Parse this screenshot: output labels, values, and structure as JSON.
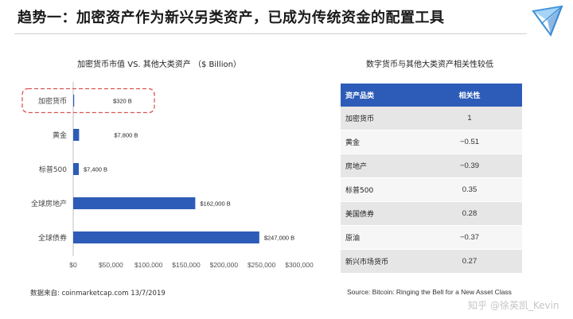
{
  "slide": {
    "title": "趋势一：加密资产作为新兴另类资产，已成为传统资金的配置工具"
  },
  "chart_data": {
    "type": "bar",
    "orientation": "horizontal",
    "title": "加密货币市值 VS. 其他大类资产 （$ Billion）",
    "categories": [
      "加密货币",
      "黄金",
      "标普500",
      "全球房地产",
      "全球债券"
    ],
    "values": [
      320,
      7800,
      7400,
      162000,
      247000
    ],
    "value_labels": [
      "$320 B",
      "$7,800 B",
      "$7,400 B",
      "$162,000 B",
      "$247,000 B"
    ],
    "x_ticks": [
      0,
      50000,
      100000,
      150000,
      200000,
      250000,
      300000
    ],
    "x_tick_labels": [
      "$0",
      "$50,000",
      "$100,000",
      "$150,000",
      "$200,000",
      "$250,000",
      "$300,000"
    ],
    "xlim": [
      0,
      300000
    ],
    "highlighted_category": "加密货币",
    "bar_color": "#2d5cb8",
    "highlight_color": "#d9534f",
    "grid": false
  },
  "table": {
    "title": "数字货币与其他大类资产相关性较低",
    "headers": [
      "资产品类",
      "相关性"
    ],
    "rows": [
      {
        "asset": "加密货币",
        "corr": "1"
      },
      {
        "asset": "黄金",
        "corr": "−0.51"
      },
      {
        "asset": "房地产",
        "corr": "−0.39"
      },
      {
        "asset": "标普500",
        "corr": "0.35"
      },
      {
        "asset": "美国债券",
        "corr": "0.28"
      },
      {
        "asset": "原油",
        "corr": "−0.37"
      },
      {
        "asset": "新兴市场货币",
        "corr": "0.27"
      }
    ],
    "header_color": "#2d5cb8"
  },
  "footnotes": {
    "left": "数据来自: coinmarketcap.com 13/7/2019",
    "right": "Source: Bitcoin: Ringing the Bell for a New Asset Class"
  },
  "watermark": "知乎 @徐英凯_Kevin",
  "logo_icon": "triangle-logo-icon"
}
